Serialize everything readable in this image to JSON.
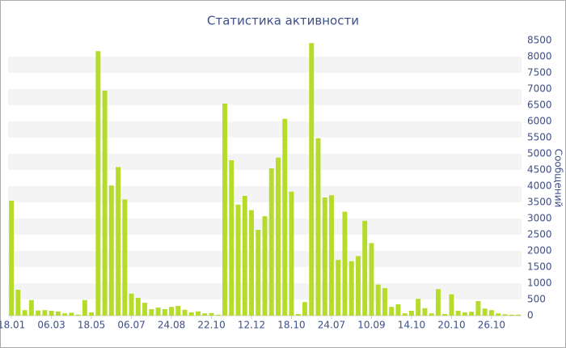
{
  "chart_data": {
    "type": "bar",
    "title": "Статистика активности",
    "y_axis_label": "Сообщений",
    "categories": [
      "18.01",
      null,
      null,
      null,
      null,
      null,
      "06.03",
      null,
      null,
      null,
      null,
      null,
      "18.05",
      null,
      null,
      null,
      null,
      null,
      "06.07",
      null,
      null,
      null,
      null,
      null,
      "24.08",
      null,
      null,
      null,
      null,
      null,
      "22.10",
      null,
      null,
      null,
      null,
      null,
      "12.12",
      null,
      null,
      null,
      null,
      null,
      "18.10",
      null,
      null,
      null,
      null,
      null,
      "24.07",
      null,
      null,
      null,
      null,
      null,
      "10.09",
      null,
      null,
      null,
      null,
      null,
      "14.10",
      null,
      null,
      null,
      null,
      null,
      "20.10",
      null,
      null,
      null,
      null,
      null,
      "26.10",
      null,
      null,
      null,
      null
    ],
    "values": [
      3550,
      800,
      170,
      480,
      160,
      170,
      150,
      130,
      70,
      90,
      30,
      480,
      100,
      8170,
      6950,
      4020,
      4590,
      3590,
      680,
      550,
      400,
      200,
      250,
      200,
      270,
      300,
      180,
      100,
      130,
      70,
      80,
      30,
      6550,
      4800,
      3430,
      3700,
      3260,
      2650,
      3070,
      4550,
      4880,
      6080,
      3830,
      50,
      420,
      8420,
      5480,
      3650,
      3720,
      1720,
      3210,
      1680,
      1840,
      2930,
      2240,
      960,
      850,
      270,
      350,
      70,
      150,
      520,
      230,
      70,
      820,
      50,
      660,
      150,
      100,
      120,
      450,
      220,
      170,
      70,
      40,
      30,
      30
    ],
    "color": "#b5dc2a",
    "ylim": [
      0,
      8500
    ],
    "yticks": [
      0,
      500,
      1000,
      1500,
      2000,
      2500,
      3000,
      3500,
      4000,
      4500,
      5000,
      5500,
      6000,
      6500,
      7000,
      7500,
      8000,
      8500
    ],
    "grid": true
  }
}
